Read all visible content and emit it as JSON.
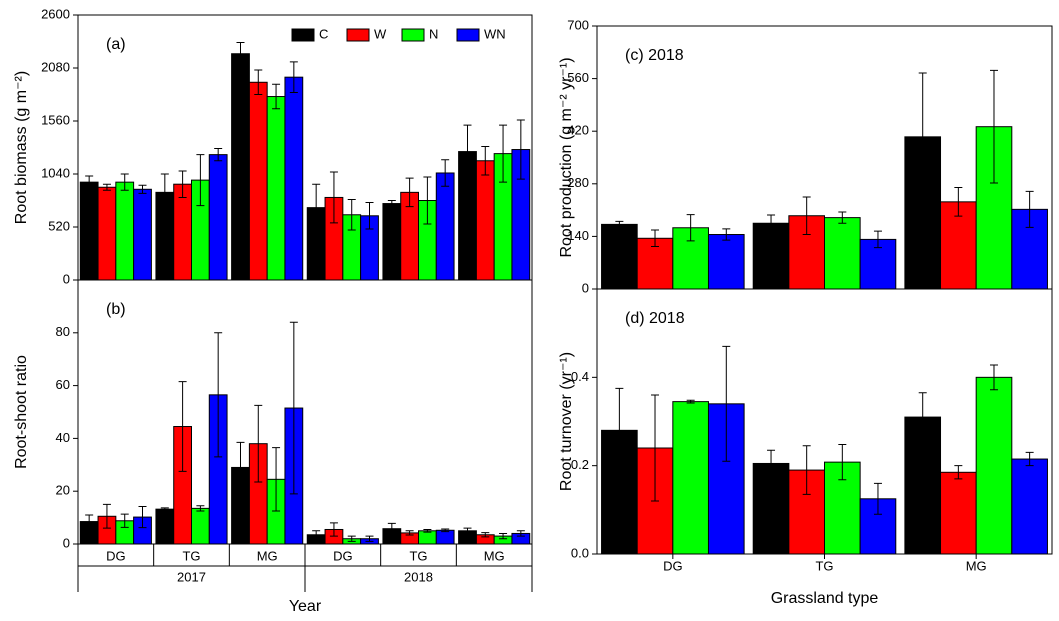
{
  "chart_data": [
    {
      "type": "bar",
      "title": "(a)",
      "y_label": "Root biomass (g m⁻²)",
      "categories": [
        null,
        null,
        null,
        null,
        null,
        null
      ],
      "ylim": [
        0,
        2600
      ],
      "yticks": [
        0,
        520,
        1040,
        1560,
        2080,
        2600
      ],
      "legend": "upper right",
      "series": [
        {
          "name": "C",
          "color": "#000000",
          "values": [
            960,
            860,
            2220,
            710,
            750,
            1260
          ],
          "errors": [
            60,
            180,
            110,
            230,
            30,
            260
          ]
        },
        {
          "name": "W",
          "color": "#ff0000",
          "values": [
            910,
            940,
            1940,
            810,
            860,
            1170
          ],
          "errors": [
            30,
            130,
            120,
            250,
            140,
            140
          ]
        },
        {
          "name": "N",
          "color": "#00ff00",
          "values": [
            960,
            980,
            1800,
            640,
            780,
            1240
          ],
          "errors": [
            80,
            250,
            120,
            150,
            230,
            280
          ]
        },
        {
          "name": "WN",
          "color": "#0000ff",
          "values": [
            890,
            1230,
            1990,
            630,
            1050,
            1280
          ],
          "errors": [
            40,
            60,
            150,
            130,
            130,
            290
          ]
        }
      ]
    },
    {
      "type": "bar",
      "title": "(b)",
      "y_label": "Root-shoot ratio",
      "x_label": "Year",
      "categories": [
        "DG",
        "TG",
        "MG",
        "DG",
        "TG",
        "MG"
      ],
      "groups": [
        "2017",
        "2018"
      ],
      "ylim": [
        0,
        100
      ],
      "yticks": [
        0,
        20,
        40,
        60,
        80
      ],
      "series": [
        {
          "name": "C",
          "color": "#000000",
          "values": [
            8.5,
            13.2,
            29,
            3.5,
            5.8,
            5
          ],
          "errors": [
            2.5,
            0.5,
            9.5,
            1.5,
            2,
            1
          ]
        },
        {
          "name": "W",
          "color": "#ff0000",
          "values": [
            10.5,
            44.5,
            38,
            5.5,
            4.2,
            3.5
          ],
          "errors": [
            4.5,
            17,
            14.5,
            2.5,
            0.8,
            0.8
          ]
        },
        {
          "name": "N",
          "color": "#00ff00",
          "values": [
            8.8,
            13.5,
            24.5,
            2,
            5,
            3
          ],
          "errors": [
            2.5,
            1,
            12,
            1,
            0.5,
            1
          ]
        },
        {
          "name": "WN",
          "color": "#0000ff",
          "values": [
            10.2,
            56.5,
            51.5,
            2,
            5.2,
            4
          ],
          "errors": [
            4,
            23.5,
            32.5,
            1,
            0.5,
            1
          ]
        }
      ]
    },
    {
      "type": "bar",
      "title": "(c)  2018",
      "y_label": "Root production (g m⁻² yr⁻¹)",
      "categories": [
        null,
        null,
        null
      ],
      "ylim": [
        0,
        700
      ],
      "yticks": [
        0,
        140,
        280,
        420,
        560,
        700
      ],
      "series": [
        {
          "name": "C",
          "color": "#000000",
          "values": [
            172,
            175,
            405
          ],
          "errors": [
            8,
            22,
            170
          ]
        },
        {
          "name": "W",
          "color": "#ff0000",
          "values": [
            135,
            195,
            232
          ],
          "errors": [
            22,
            50,
            38
          ]
        },
        {
          "name": "N",
          "color": "#00ff00",
          "values": [
            163,
            190,
            432
          ],
          "errors": [
            35,
            15,
            150
          ]
        },
        {
          "name": "WN",
          "color": "#0000ff",
          "values": [
            145,
            132,
            212
          ],
          "errors": [
            15,
            22,
            48
          ]
        }
      ]
    },
    {
      "type": "bar",
      "title": "(d)  2018",
      "y_label": "Root turnover (yr⁻¹)",
      "x_label": "Grassland type",
      "categories": [
        "DG",
        "TG",
        "MG"
      ],
      "ylim": [
        0,
        0.6
      ],
      "yticks": [
        {
          "value": 0,
          "label": "0.0"
        },
        0.2,
        0.4
      ],
      "series": [
        {
          "name": "C",
          "color": "#000000",
          "values": [
            0.28,
            0.205,
            0.31
          ],
          "errors": [
            0.095,
            0.03,
            0.055
          ]
        },
        {
          "name": "W",
          "color": "#ff0000",
          "values": [
            0.24,
            0.19,
            0.185
          ],
          "errors": [
            0.12,
            0.055,
            0.015
          ]
        },
        {
          "name": "N",
          "color": "#00ff00",
          "values": [
            0.345,
            0.208,
            0.4
          ],
          "errors": [
            0.003,
            0.04,
            0.028
          ]
        },
        {
          "name": "WN",
          "color": "#0000ff",
          "values": [
            0.34,
            0.125,
            0.215
          ],
          "errors": [
            0.13,
            0.035,
            0.015
          ]
        }
      ]
    }
  ]
}
